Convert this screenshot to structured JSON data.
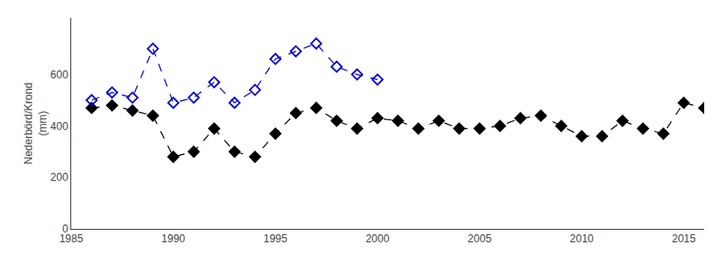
{
  "chart_data": {
    "type": "line",
    "ylabel": "Nederbörd/Krond\n(mm)",
    "series": [
      {
        "color": "#000000",
        "marker": "diamond",
        "line_style": "dash",
        "x": [
          1986,
          1987,
          1988,
          1989,
          1990,
          1991,
          1992,
          1993,
          1994,
          1995,
          1996,
          1997,
          1998,
          1999,
          2000,
          2001,
          2002,
          2003,
          2004,
          2005,
          2006,
          2007,
          2008,
          2009,
          2010,
          2011,
          2012,
          2013,
          2014,
          2015,
          2016
        ],
        "values": [
          470,
          480,
          460,
          440,
          280,
          300,
          390,
          300,
          280,
          370,
          450,
          470,
          420,
          390,
          430,
          420,
          390,
          420,
          390,
          390,
          400,
          430,
          440,
          400,
          360,
          360,
          420,
          390,
          370,
          490,
          470
        ]
      },
      {
        "color": "#0000cc",
        "marker": "diamond-open",
        "line_style": "dash",
        "x": [
          1986,
          1987,
          1988,
          1989,
          1990,
          1991,
          1992,
          1993,
          1994,
          1995,
          1996,
          1997,
          1998,
          1999,
          2000
        ],
        "values": [
          500,
          530,
          510,
          700,
          490,
          510,
          570,
          490,
          540,
          660,
          690,
          720,
          630,
          600,
          580
        ]
      }
    ],
    "xlim": [
      1985,
      2016
    ],
    "xticks": [
      1985,
      1990,
      1995,
      2000,
      2005,
      2010,
      2015
    ],
    "ylim": [
      0,
      820
    ],
    "yticks": [
      0,
      200,
      400,
      600
    ],
    "grid": false
  }
}
